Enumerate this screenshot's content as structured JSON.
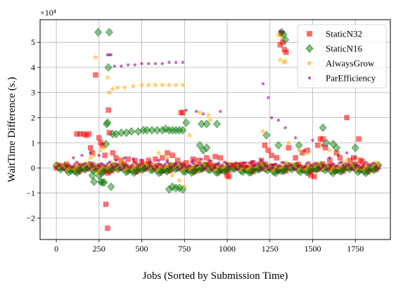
{
  "chart_data": {
    "type": "scatter",
    "xlabel": "Jobs (Sorted by Submission Time)",
    "ylabel": "WaitTime Difference (s.)",
    "y_scale_label": "×10⁴",
    "xlim": [
      -95,
      1955
    ],
    "ylim": [
      -2.85,
      5.9
    ],
    "y_units": "×10^4 s",
    "grid": true,
    "legend_position": "top-right",
    "x_ticks": [
      0,
      250,
      500,
      750,
      1000,
      1250,
      1500,
      1750
    ],
    "y_ticks": [
      -2,
      -1,
      0,
      1,
      2,
      3,
      4,
      5
    ],
    "series": [
      {
        "name": "StaticN32",
        "marker": "square",
        "color": "#ff0000",
        "points": [
          [
            120,
            1.35
          ],
          [
            140,
            1.35
          ],
          [
            160,
            1.35
          ],
          [
            175,
            1.3
          ],
          [
            190,
            1.35
          ],
          [
            200,
            0.8
          ],
          [
            210,
            0.6
          ],
          [
            230,
            3.7
          ],
          [
            250,
            1.2
          ],
          [
            260,
            1.0
          ],
          [
            270,
            0.9
          ],
          [
            285,
            0.5
          ],
          [
            290,
            -1.45
          ],
          [
            300,
            -2.4
          ],
          [
            300,
            -0.2
          ],
          [
            305,
            2.3
          ],
          [
            310,
            1.4
          ],
          [
            330,
            0.6
          ],
          [
            350,
            0.4
          ],
          [
            380,
            0.3
          ],
          [
            420,
            0.35
          ],
          [
            460,
            0.3
          ],
          [
            500,
            0.25
          ],
          [
            540,
            0.3
          ],
          [
            580,
            0.35
          ],
          [
            620,
            0.4
          ],
          [
            650,
            0.6
          ],
          [
            680,
            0.5
          ],
          [
            710,
            0.3
          ],
          [
            730,
            2.2
          ],
          [
            740,
            2.2
          ],
          [
            760,
            0.2
          ],
          [
            800,
            0.35
          ],
          [
            830,
            0.3
          ],
          [
            880,
            0.4
          ],
          [
            900,
            0.2
          ],
          [
            930,
            0.45
          ],
          [
            960,
            0.4
          ],
          [
            1000,
            -0.3
          ],
          [
            1010,
            -0.35
          ],
          [
            1040,
            0.1
          ],
          [
            1100,
            0.15
          ],
          [
            1150,
            0.2
          ],
          [
            1200,
            0.3
          ],
          [
            1220,
            0.9
          ],
          [
            1240,
            0.7
          ],
          [
            1260,
            0.5
          ],
          [
            1290,
            0.4
          ],
          [
            1310,
            4.9
          ],
          [
            1315,
            5.35
          ],
          [
            1325,
            5.0
          ],
          [
            1335,
            4.7
          ],
          [
            1345,
            4.6
          ],
          [
            1360,
            0.8
          ],
          [
            1400,
            0.4
          ],
          [
            1440,
            0.6
          ],
          [
            1470,
            0.7
          ],
          [
            1490,
            -0.3
          ],
          [
            1510,
            -0.35
          ],
          [
            1530,
            0.9
          ],
          [
            1545,
            1.15
          ],
          [
            1560,
            1.15
          ],
          [
            1575,
            0.8
          ],
          [
            1600,
            0.3
          ],
          [
            1640,
            0.6
          ],
          [
            1660,
            0.4
          ],
          [
            1700,
            2.0
          ],
          [
            1720,
            0.3
          ],
          [
            1740,
            0.4
          ],
          [
            1770,
            1.15
          ],
          [
            1780,
            0.3
          ],
          [
            1790,
            0.25
          ]
        ]
      },
      {
        "name": "StaticN16",
        "marker": "diamond",
        "color": "#008000",
        "points": [
          [
            210,
            -0.3
          ],
          [
            220,
            -0.55
          ],
          [
            245,
            5.4
          ],
          [
            250,
            -0.3
          ],
          [
            260,
            -0.55
          ],
          [
            270,
            -0.58
          ],
          [
            280,
            -0.58
          ],
          [
            290,
            0.95
          ],
          [
            295,
            1.75
          ],
          [
            300,
            1.8
          ],
          [
            305,
            4.0
          ],
          [
            310,
            5.4
          ],
          [
            320,
            -0.75
          ],
          [
            330,
            1.35
          ],
          [
            350,
            1.35
          ],
          [
            380,
            1.4
          ],
          [
            410,
            1.4
          ],
          [
            440,
            1.45
          ],
          [
            480,
            1.45
          ],
          [
            510,
            1.5
          ],
          [
            530,
            1.5
          ],
          [
            560,
            1.5
          ],
          [
            590,
            1.5
          ],
          [
            620,
            1.5
          ],
          [
            640,
            1.55
          ],
          [
            660,
            1.5
          ],
          [
            680,
            1.5
          ],
          [
            700,
            1.5
          ],
          [
            720,
            1.5
          ],
          [
            740,
            1.5
          ],
          [
            760,
            1.8
          ],
          [
            660,
            -0.85
          ],
          [
            680,
            -0.75
          ],
          [
            700,
            -0.8
          ],
          [
            720,
            -0.8
          ],
          [
            740,
            -0.85
          ],
          [
            850,
            1.75
          ],
          [
            880,
            1.75
          ],
          [
            940,
            1.75
          ],
          [
            840,
            0.9
          ],
          [
            860,
            0.7
          ],
          [
            880,
            0.8
          ],
          [
            1230,
            1.3
          ],
          [
            1300,
            0.9
          ],
          [
            1320,
            5.4
          ],
          [
            1330,
            5.3
          ],
          [
            1340,
            5.1
          ],
          [
            1420,
            0.9
          ],
          [
            1560,
            1.6
          ],
          [
            1580,
            1.0
          ],
          [
            1620,
            0.95
          ],
          [
            1640,
            0.8
          ],
          [
            1750,
            0.8
          ]
        ]
      },
      {
        "name": "AlwaysGrow",
        "marker": "star",
        "color": "#ffa500",
        "points": [
          [
            230,
            4.4
          ],
          [
            240,
            -0.2
          ],
          [
            300,
            3.6
          ],
          [
            310,
            3.0
          ],
          [
            330,
            3.15
          ],
          [
            360,
            3.2
          ],
          [
            400,
            3.2
          ],
          [
            450,
            3.25
          ],
          [
            500,
            3.3
          ],
          [
            540,
            3.3
          ],
          [
            580,
            3.3
          ],
          [
            620,
            3.3
          ],
          [
            660,
            3.3
          ],
          [
            700,
            3.3
          ],
          [
            740,
            3.3
          ],
          [
            200,
            0.4
          ],
          [
            220,
            0.5
          ],
          [
            260,
            0.7
          ],
          [
            280,
            0.8
          ],
          [
            380,
            0.3
          ],
          [
            600,
            0.6
          ],
          [
            650,
            0.4
          ],
          [
            680,
            -0.3
          ],
          [
            720,
            -0.5
          ],
          [
            750,
            -0.75
          ],
          [
            780,
            1.3
          ],
          [
            840,
            2.2
          ],
          [
            890,
            2.1
          ],
          [
            900,
            1.9
          ],
          [
            1210,
            1.45
          ],
          [
            1300,
            5.3
          ],
          [
            1310,
            4.3
          ],
          [
            1320,
            5.2
          ],
          [
            1330,
            4.2
          ],
          [
            1340,
            4.25
          ],
          [
            1360,
            1.0
          ],
          [
            1420,
            0.7
          ],
          [
            1470,
            0.6
          ],
          [
            1550,
            0.9
          ],
          [
            1600,
            0.7
          ],
          [
            1650,
            0.5
          ],
          [
            1700,
            0.3
          ],
          [
            1760,
            0.4
          ]
        ]
      },
      {
        "name": "ParEfficiency",
        "marker": "circle",
        "color": "#800080",
        "points": [
          [
            300,
            4.5
          ],
          [
            310,
            4.5
          ],
          [
            320,
            4.5
          ],
          [
            340,
            4.05
          ],
          [
            380,
            4.05
          ],
          [
            420,
            4.1
          ],
          [
            460,
            4.1
          ],
          [
            500,
            4.15
          ],
          [
            540,
            4.15
          ],
          [
            580,
            4.15
          ],
          [
            620,
            4.15
          ],
          [
            660,
            4.2
          ],
          [
            700,
            4.2
          ],
          [
            740,
            4.2
          ],
          [
            760,
            2.3
          ],
          [
            820,
            2.25
          ],
          [
            860,
            2.15
          ],
          [
            960,
            2.25
          ],
          [
            1210,
            3.35
          ],
          [
            1240,
            2.8
          ],
          [
            1260,
            2.0
          ],
          [
            1300,
            1.9
          ],
          [
            1310,
            5.45
          ],
          [
            1320,
            5.4
          ],
          [
            1340,
            1.6
          ],
          [
            1400,
            1.2
          ],
          [
            1450,
            0.7
          ],
          [
            1500,
            1.1
          ],
          [
            1560,
            0.9
          ],
          [
            1600,
            0.4
          ],
          [
            1650,
            0.5
          ],
          [
            1700,
            0.6
          ],
          [
            1750,
            0.4
          ],
          [
            100,
            0.4
          ],
          [
            150,
            0.5
          ],
          [
            200,
            0.6
          ],
          [
            250,
            0.5
          ],
          [
            350,
            0.3
          ],
          [
            400,
            0.4
          ],
          [
            450,
            0.35
          ],
          [
            500,
            0.3
          ],
          [
            550,
            0.25
          ],
          [
            600,
            0.3
          ],
          [
            650,
            0.3
          ],
          [
            700,
            0.2
          ],
          [
            800,
            0.3
          ],
          [
            850,
            0.35
          ],
          [
            900,
            0.3
          ],
          [
            950,
            0.2
          ],
          [
            1000,
            0.15
          ],
          [
            1050,
            0.2
          ],
          [
            1100,
            0.2
          ],
          [
            1150,
            0.25
          ],
          [
            1200,
            0.3
          ]
        ]
      }
    ]
  }
}
